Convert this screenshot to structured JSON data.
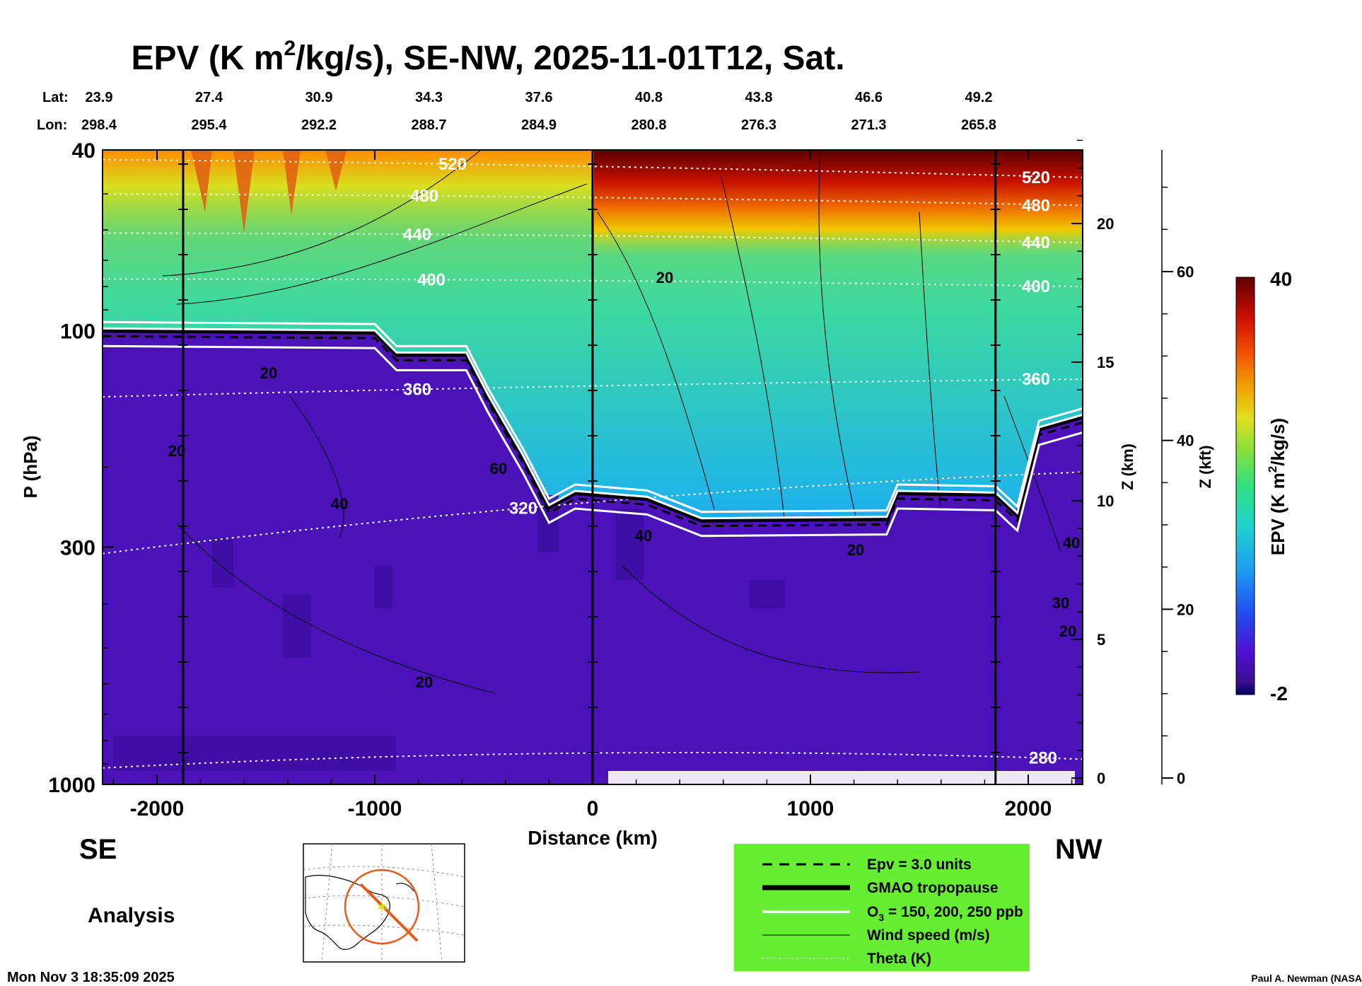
{
  "chart_data": {
    "type": "heatmap",
    "title_prefix": "EPV (K m",
    "title_sup": "2",
    "title_suffix": "/kg/s), SE-NW, 2025-11-01T12, Sat.",
    "xlabel": "Distance (km)",
    "ylabel": "P (hPa)",
    "z_km_label": "Z (km)",
    "z_kft_label": "Z (kft)",
    "xlim": [
      -2250,
      2250
    ],
    "ylim_hpa": [
      1000,
      40
    ],
    "x_ticks": [
      -2000,
      -1000,
      0,
      1000,
      2000
    ],
    "x_tick_labels": [
      "-2000",
      "-1000",
      "0",
      "1000",
      "2000"
    ],
    "p_ticks": [
      {
        "p": 40,
        "label": "40"
      },
      {
        "p": 100,
        "label": "100"
      },
      {
        "p": 300,
        "label": "300"
      },
      {
        "p": 1000,
        "label": "1000"
      }
    ],
    "z_km_ticks": [
      {
        "z": 0,
        "label": "0"
      },
      {
        "z": 5,
        "label": "5"
      },
      {
        "z": 10,
        "label": "10"
      },
      {
        "z": 15,
        "label": "15"
      },
      {
        "z": 20,
        "label": "20"
      }
    ],
    "z_kft_ticks": [
      {
        "z": 0,
        "label": "0"
      },
      {
        "z": 20,
        "label": "20"
      },
      {
        "z": 40,
        "label": "40"
      },
      {
        "z": 60,
        "label": "60"
      }
    ],
    "lat_label": "Lat:",
    "lon_label": "Lon:",
    "lat_values": [
      "23.9",
      "27.4",
      "30.9",
      "34.3",
      "37.6",
      "40.8",
      "43.8",
      "46.6",
      "49.2"
    ],
    "lon_values": [
      "298.4",
      "295.4",
      "292.2",
      "288.7",
      "284.9",
      "280.8",
      "276.3",
      "271.3",
      "265.8"
    ],
    "colorbar": {
      "label_prefix": "EPV (K m",
      "label_sup": "2",
      "label_suffix": "/kg/s)",
      "min_label": "-2",
      "max_label": "40",
      "range": [
        -2,
        40
      ]
    },
    "theta_contours": [
      {
        "label": "520",
        "theta": 520,
        "p_se": 42,
        "p_nw": 46
      },
      {
        "label": "480",
        "theta": 480,
        "p_se": 50,
        "p_nw": 53
      },
      {
        "label": "440",
        "theta": 440,
        "p_se": 61,
        "p_nw": 64
      },
      {
        "label": "400",
        "theta": 400,
        "p_se": 77,
        "p_nw": 80
      },
      {
        "label": "360",
        "theta": 360,
        "p_se": 140,
        "p_nw": 128
      },
      {
        "label": "320",
        "theta": 320,
        "p_se": 310,
        "p_nw": 205
      },
      {
        "label": "280",
        "theta": 280,
        "p_se": 920,
        "p_nw": 880
      }
    ],
    "wind_contour_labels": [
      "20",
      "20",
      "20",
      "40",
      "60",
      "20",
      "40",
      "20",
      "40",
      "30",
      "20"
    ],
    "tropopause_hpa": [
      {
        "x": -2250,
        "p": 100
      },
      {
        "x": -1000,
        "p": 101
      },
      {
        "x": -900,
        "p": 113
      },
      {
        "x": -580,
        "p": 113
      },
      {
        "x": -480,
        "p": 140
      },
      {
        "x": -320,
        "p": 190
      },
      {
        "x": -200,
        "p": 245
      },
      {
        "x": -80,
        "p": 228
      },
      {
        "x": 250,
        "p": 235
      },
      {
        "x": 500,
        "p": 262
      },
      {
        "x": 1350,
        "p": 260
      },
      {
        "x": 1400,
        "p": 228
      },
      {
        "x": 1850,
        "p": 230
      },
      {
        "x": 1950,
        "p": 255
      },
      {
        "x": 2050,
        "p": 165
      },
      {
        "x": 2250,
        "p": 155
      }
    ],
    "region_se": "SE",
    "region_nw": "NW",
    "analysis_label": "Analysis",
    "legend": [
      {
        "label": "Epv = 3.0 units",
        "style": "dashed-black"
      },
      {
        "label": "GMAO tropopause",
        "style": "thick-black"
      },
      {
        "label_prefix": "O",
        "label_sub": "3",
        "label_suffix": " = 150, 200, 250 ppb",
        "style": "white"
      },
      {
        "label": "Wind speed (m/s)",
        "style": "thin-black"
      },
      {
        "label": "Theta (K)",
        "style": "dotted-white"
      }
    ],
    "timestamp": "Mon Nov  3 18:35:09 2025",
    "credit": "Paul A. Newman (NASA"
  },
  "colors": {
    "legend_bg": "#66ee33",
    "troposphere": "#4a12b8",
    "epv_high": "#6a0000"
  }
}
